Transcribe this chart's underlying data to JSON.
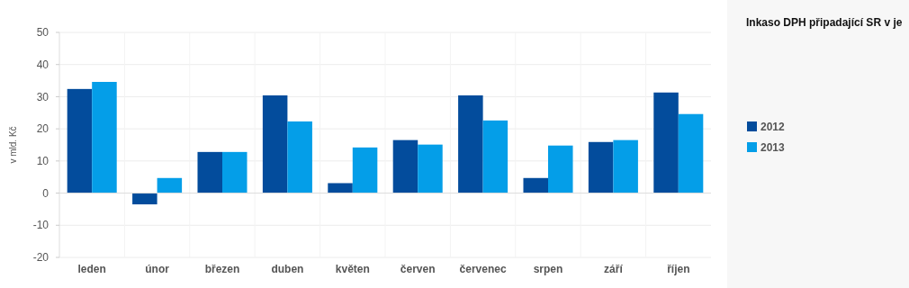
{
  "chart_data": {
    "type": "bar",
    "title": "Inkaso DPH připadající SR v je",
    "ylabel": "v mld. Kč",
    "categories": [
      "leden",
      "únor",
      "březen",
      "duben",
      "květen",
      "červen",
      "červenec",
      "srpen",
      "září",
      "říjen"
    ],
    "series": [
      {
        "name": "2012",
        "color": "#034c9c",
        "values": [
          32.4,
          -3.5,
          12.8,
          30.4,
          3.1,
          16.5,
          30.4,
          4.7,
          15.9,
          31.3
        ]
      },
      {
        "name": "2013",
        "color": "#049ee8",
        "values": [
          34.6,
          4.7,
          12.8,
          22.3,
          14.2,
          15.1,
          22.6,
          14.8,
          16.5,
          24.6
        ]
      }
    ],
    "ylim": [
      -20,
      50
    ],
    "yticks": [
      -20,
      -10,
      0,
      10,
      20,
      30,
      40,
      50
    ],
    "grid": true,
    "legend": "right"
  }
}
